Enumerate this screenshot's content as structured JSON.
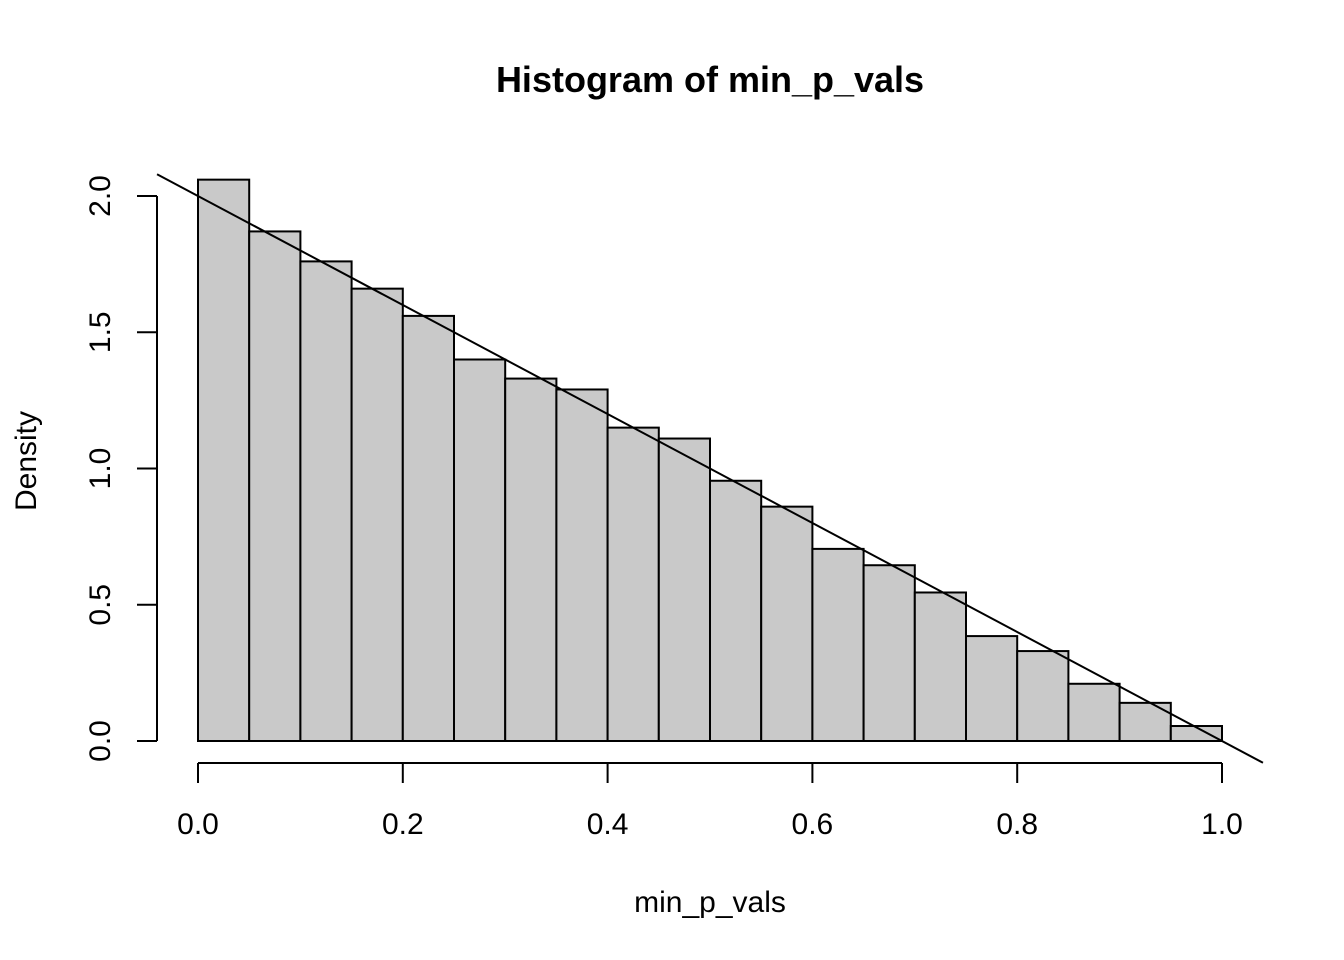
{
  "chart_data": {
    "type": "bar",
    "title": "Histogram of min_p_vals",
    "xlabel": "min_p_vals",
    "ylabel": "Density",
    "bin_edges": [
      0.0,
      0.05,
      0.1,
      0.15,
      0.2,
      0.25,
      0.3,
      0.35,
      0.4,
      0.45,
      0.5,
      0.55,
      0.6,
      0.65,
      0.7,
      0.75,
      0.8,
      0.85,
      0.9,
      0.95,
      1.0
    ],
    "values": [
      2.06,
      1.87,
      1.76,
      1.66,
      1.56,
      1.4,
      1.33,
      1.29,
      1.15,
      1.11,
      0.955,
      0.86,
      0.705,
      0.645,
      0.545,
      0.385,
      0.33,
      0.21,
      0.14,
      0.055
    ],
    "xlim": [
      0.0,
      1.0
    ],
    "ylim": [
      0.0,
      2.0
    ],
    "x_ticks": [
      0.0,
      0.2,
      0.4,
      0.6,
      0.8,
      1.0
    ],
    "x_tick_labels": [
      "0.0",
      "0.2",
      "0.4",
      "0.6",
      "0.8",
      "1.0"
    ],
    "y_ticks": [
      0.0,
      0.5,
      1.0,
      1.5,
      2.0
    ],
    "y_tick_labels": [
      "0.0",
      "0.5",
      "1.0",
      "1.5",
      "2.0"
    ],
    "overlay_line": {
      "x": [
        -0.04,
        1.04
      ],
      "y": [
        2.08,
        -0.08
      ]
    },
    "bar_fill": "#c9c9c9",
    "grid": false
  }
}
